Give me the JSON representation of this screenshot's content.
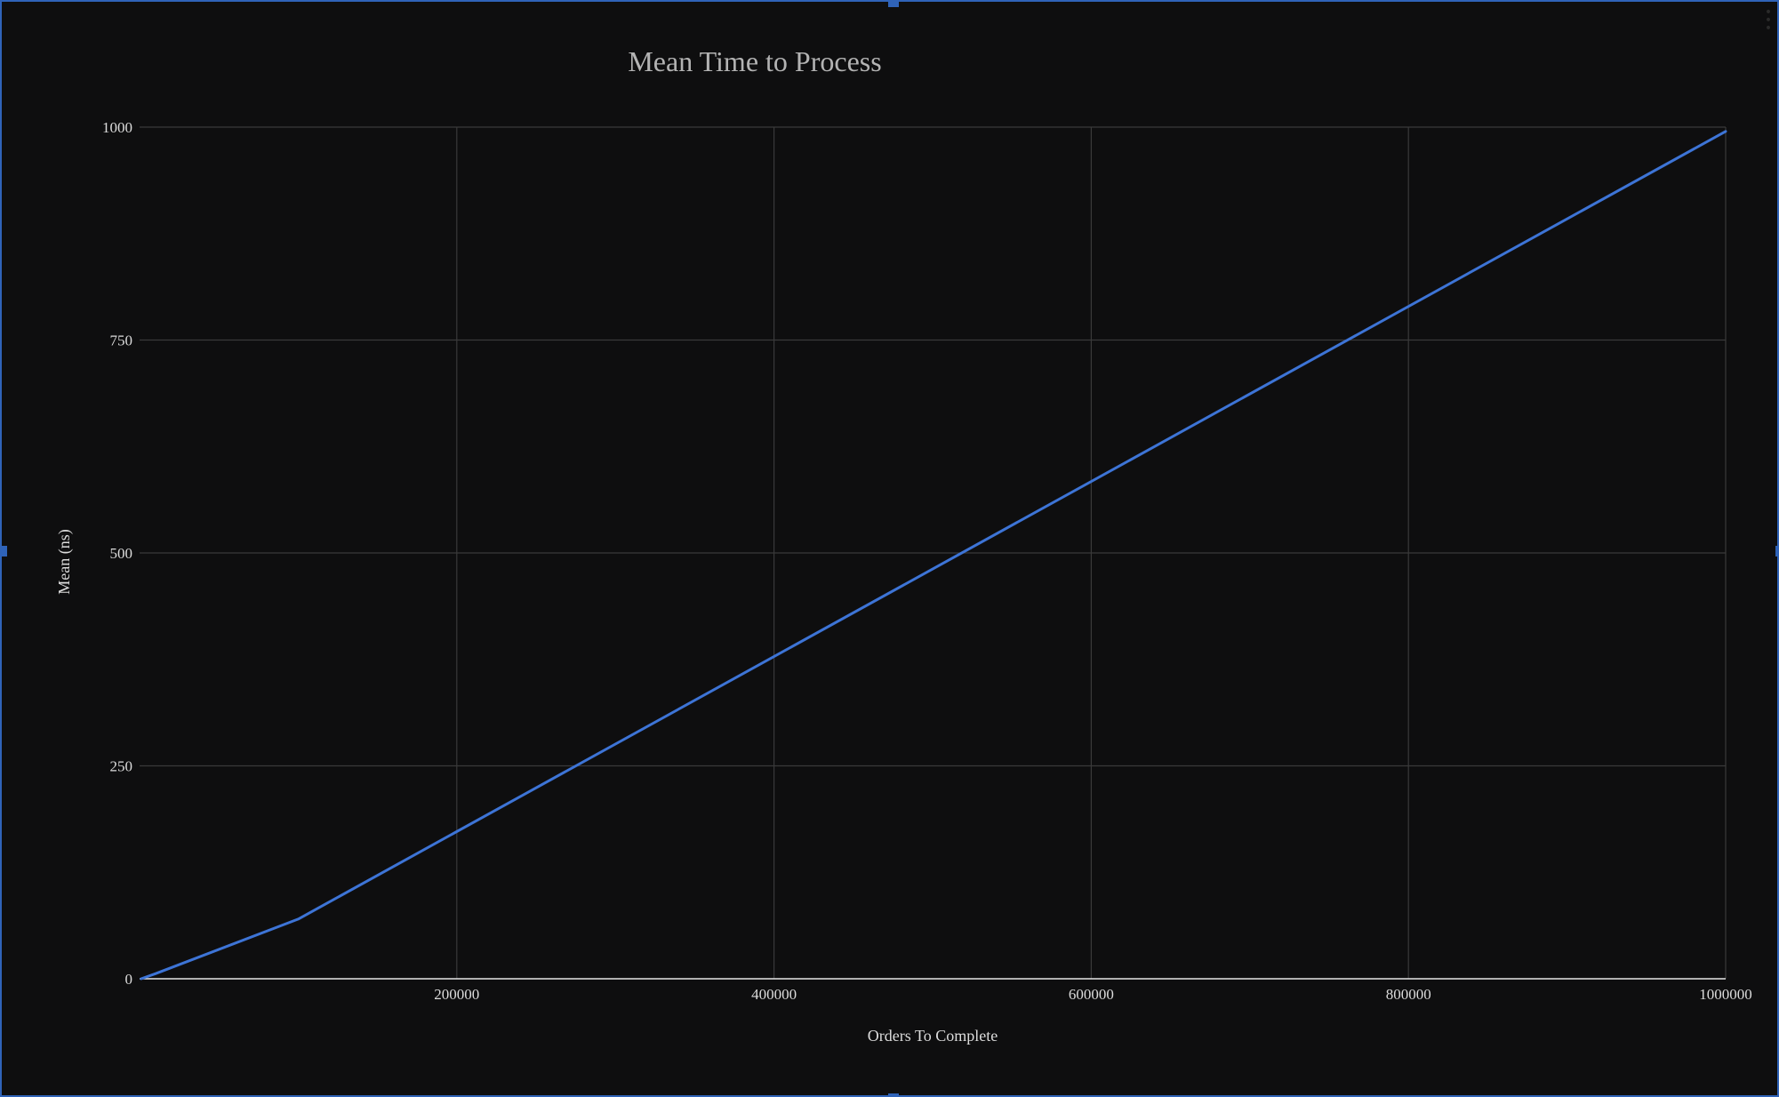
{
  "colors": {
    "background": "#0e0e0f",
    "grid": "#3a3a3a",
    "axis": "#e6e6e6",
    "series": "#3d74d6",
    "selection": "#2f63b8",
    "title": "#b3b3b3",
    "label": "#dcdcdc"
  },
  "icons": {
    "menu": "more-vertical-icon"
  },
  "chart_data": {
    "type": "line",
    "title": "Mean Time to Process",
    "xlabel": "Orders To Complete",
    "ylabel": "Mean (ns)",
    "xlim": [
      0,
      1000000
    ],
    "ylim": [
      0,
      1000
    ],
    "x_ticks": [
      200000,
      400000,
      600000,
      800000,
      1000000
    ],
    "y_ticks": [
      0,
      250,
      500,
      750,
      1000
    ],
    "grid": true,
    "legend": "none",
    "series": [
      {
        "x": [
          1000,
          10000,
          100000,
          1000000
        ],
        "y": [
          0,
          6,
          70,
          995
        ]
      }
    ]
  }
}
